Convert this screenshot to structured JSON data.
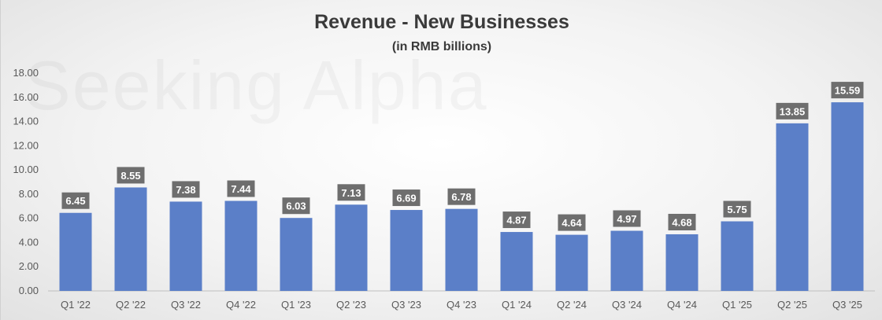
{
  "chart_data": {
    "type": "bar",
    "title": "Revenue - New Businesses",
    "subtitle": "(in RMB billions)",
    "categories": [
      "Q1 '22",
      "Q2 '22",
      "Q3 '22",
      "Q4 '22",
      "Q1 '23",
      "Q2 '23",
      "Q3 '23",
      "Q4 '23",
      "Q1 '24",
      "Q2 '24",
      "Q3 '24",
      "Q4 '24",
      "Q1 '25",
      "Q2 '25",
      "Q3 '25"
    ],
    "values": [
      6.45,
      8.55,
      7.38,
      7.44,
      6.03,
      7.13,
      6.69,
      6.78,
      4.87,
      4.64,
      4.97,
      4.68,
      5.75,
      13.85,
      15.59
    ],
    "value_labels": [
      "6.45",
      "8.55",
      "7.38",
      "7.44",
      "6.03",
      "7.13",
      "6.69",
      "6.78",
      "4.87",
      "4.64",
      "4.97",
      "4.68",
      "5.75",
      "13.85",
      "15.59"
    ],
    "yticks": [
      "0.00",
      "2.00",
      "4.00",
      "6.00",
      "8.00",
      "10.00",
      "12.00",
      "14.00",
      "16.00",
      "18.00"
    ],
    "ylim": [
      0,
      18
    ],
    "xlabel": "",
    "ylabel": "",
    "grid": false,
    "legend": "none",
    "bar_color": "#5B7FC8",
    "label_box_color": "#6E6E6E",
    "watermark": "Seeking Alpha"
  }
}
